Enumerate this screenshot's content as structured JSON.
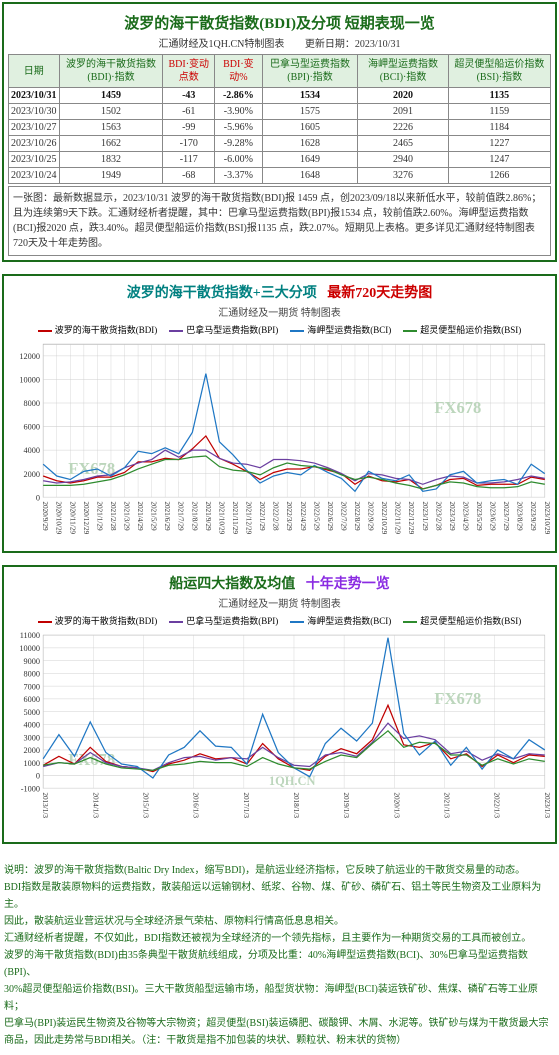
{
  "header": {
    "title": "波罗的海干散货指数(BDI)及分项 短期表现一览",
    "source_left": "汇通财经及1QH.CN特制图表",
    "source_right": "更新日期：2023/10/31"
  },
  "table": {
    "columns": [
      "日期",
      "波罗的海干散货指数(BDI)·指数",
      "BDI·变动点数",
      "BDI·变动%",
      "巴拿马型运费指数(BPI)·指数",
      "海岬型运费指数(BCI)·指数",
      "超灵便型船运价指数(BSI)·指数"
    ],
    "rows": [
      {
        "date": "2023/10/31",
        "bdi": "1459",
        "chg": "-43",
        "pct": "-2.86%",
        "bpi": "1534",
        "bci": "2020",
        "bsi": "1135",
        "hl": true
      },
      {
        "date": "2023/10/30",
        "bdi": "1502",
        "chg": "-61",
        "pct": "-3.90%",
        "bpi": "1575",
        "bci": "2091",
        "bsi": "1159"
      },
      {
        "date": "2023/10/27",
        "bdi": "1563",
        "chg": "-99",
        "pct": "-5.96%",
        "bpi": "1605",
        "bci": "2226",
        "bsi": "1184"
      },
      {
        "date": "2023/10/26",
        "bdi": "1662",
        "chg": "-170",
        "pct": "-9.28%",
        "bpi": "1628",
        "bci": "2465",
        "bsi": "1227"
      },
      {
        "date": "2023/10/25",
        "bdi": "1832",
        "chg": "-117",
        "pct": "-6.00%",
        "bpi": "1649",
        "bci": "2940",
        "bsi": "1247"
      },
      {
        "date": "2023/10/24",
        "bdi": "1949",
        "chg": "-68",
        "pct": "-3.37%",
        "bpi": "1648",
        "bci": "3276",
        "bsi": "1266"
      }
    ],
    "caption": "一张图：最新数据显示，2023/10/31 波罗的海干散货指数(BDI)报 1459 点，创2023/09/18以来新低水平，较前值跌2.86%；且为连续第9天下跌。汇通财经析者提醒，其中：巴拿马型运费指数(BPI)报1534 点，较前值跌2.60%。海岬型运费指数(BCI)报2020 点，跌3.40%。超灵便型船运价指数(BSI)报1135 点，跌2.07%。短期见上表格。更多详见汇通财经特制图表720天及十年走势图。"
  },
  "chart1": {
    "title_left": "波罗的海干散货指数+三大分项",
    "title_right": "最新720天走势图",
    "subtitle": "汇通财经及一期货 特制图表",
    "series": [
      {
        "name": "波罗的海干散货指数(BDI)",
        "color": "#c00000"
      },
      {
        "name": "巴拿马型运费指数(BPI)",
        "color": "#6b3fa0"
      },
      {
        "name": "海岬型运费指数(BCI)",
        "color": "#1f77c4"
      },
      {
        "name": "超灵便型船运价指数(BSI)",
        "color": "#2e8b2e"
      }
    ],
    "ylim": [
      0,
      13000
    ],
    "yticks": [
      0,
      2000,
      4000,
      6000,
      8000,
      10000,
      12000
    ],
    "xlabels": [
      "2020/9/29",
      "2020/10/29",
      "2020/11/29",
      "2020/12/29",
      "2021/1/29",
      "2021/2/28",
      "2021/3/29",
      "2021/4/29",
      "2021/5/29",
      "2021/6/29",
      "2021/7/29",
      "2021/8/29",
      "2021/9/29",
      "2021/10/29",
      "2021/11/29",
      "2021/12/29",
      "2022/1/29",
      "2022/2/28",
      "2022/3/29",
      "2022/4/29",
      "2022/5/29",
      "2022/6/29",
      "2022/7/29",
      "2022/8/29",
      "2022/9/29",
      "2022/10/29",
      "2022/11/29",
      "2022/12/29",
      "2023/1/29",
      "2023/2/28",
      "2023/3/29",
      "2023/4/29",
      "2023/5/29",
      "2023/6/29",
      "2023/7/29",
      "2023/8/29",
      "2023/9/29",
      "2023/10/29"
    ],
    "watermark": "FX678",
    "paths": {
      "bdi": [
        1800,
        1400,
        1200,
        1400,
        1700,
        1700,
        2100,
        3000,
        3000,
        3300,
        3200,
        4100,
        5200,
        3300,
        2800,
        2200,
        1500,
        2100,
        2400,
        2400,
        2600,
        2300,
        2000,
        1100,
        1800,
        1400,
        1300,
        1500,
        700,
        1000,
        1500,
        1600,
        1000,
        1100,
        1100,
        1100,
        1700,
        1500
      ],
      "bpi": [
        1400,
        1200,
        1300,
        1500,
        1800,
        1900,
        2500,
        2900,
        3200,
        4000,
        3400,
        4000,
        4000,
        3300,
        2900,
        2800,
        2500,
        3200,
        3200,
        3100,
        2900,
        2500,
        2000,
        1400,
        2000,
        1900,
        1600,
        1500,
        1100,
        1500,
        1800,
        1700,
        1200,
        1200,
        1300,
        1500,
        1800,
        1600
      ],
      "bci": [
        2800,
        1800,
        1500,
        2200,
        2400,
        1800,
        2500,
        3900,
        3700,
        4200,
        3700,
        5500,
        10500,
        4700,
        3600,
        2300,
        1200,
        1800,
        2100,
        1900,
        2700,
        2100,
        1600,
        500,
        2200,
        1600,
        1400,
        1900,
        500,
        700,
        1900,
        2200,
        1200,
        1400,
        1500,
        1100,
        2800,
        2000
      ],
      "bsi": [
        1000,
        1000,
        1000,
        1100,
        1300,
        1500,
        1900,
        2400,
        2800,
        3200,
        3200,
        3400,
        3500,
        2600,
        2300,
        2200,
        1900,
        2500,
        2900,
        2700,
        2600,
        2400,
        1900,
        1500,
        1700,
        1500,
        1200,
        1000,
        700,
        1000,
        1300,
        1200,
        900,
        800,
        800,
        900,
        1300,
        1100
      ]
    },
    "grid_color": "#d0d0d0",
    "bg": "#ffffff",
    "label_fontsize": 8
  },
  "chart2": {
    "title_left": "船运四大指数及均值",
    "title_right": "十年走势一览",
    "subtitle": "汇通财经及一期货 特制图表",
    "series": [
      {
        "name": "波罗的海干散货指数(BDI)",
        "color": "#c00000"
      },
      {
        "name": "巴拿马型运费指数(BPI)",
        "color": "#6b3fa0"
      },
      {
        "name": "海岬型运费指数(BCI)",
        "color": "#1f77c4"
      },
      {
        "name": "超灵便型船运价指数(BSI)",
        "color": "#2e8b2e"
      }
    ],
    "ylim": [
      -1000,
      11000
    ],
    "yticks": [
      -1000,
      0,
      1000,
      2000,
      3000,
      4000,
      5000,
      6000,
      7000,
      8000,
      9000,
      10000,
      11000
    ],
    "xlabels": [
      "2013/1/3",
      "2014/1/3",
      "2015/1/3",
      "2016/1/3",
      "2017/1/3",
      "2018/1/3",
      "2019/1/3",
      "2020/1/3",
      "2021/1/3",
      "2022/1/3",
      "2023/1/3"
    ],
    "watermark": "FX678",
    "watermark2": "1QH.CN",
    "paths": {
      "bdi": [
        800,
        1500,
        900,
        2200,
        1100,
        700,
        600,
        300,
        900,
        1200,
        1700,
        1300,
        1400,
        900,
        2500,
        1300,
        600,
        400,
        1500,
        2100,
        1700,
        2800,
        5500,
        2400,
        2200,
        2600,
        1300,
        1700,
        700,
        1600,
        1000,
        1600,
        1500
      ],
      "bpi": [
        700,
        1000,
        900,
        1800,
        1000,
        700,
        600,
        400,
        1000,
        1400,
        1500,
        1200,
        1400,
        1300,
        2200,
        1400,
        800,
        700,
        1600,
        1800,
        1500,
        2600,
        4100,
        2900,
        3100,
        2800,
        1700,
        1900,
        1200,
        1700,
        1300,
        1700,
        1600
      ],
      "bci": [
        1300,
        3200,
        1500,
        4200,
        1800,
        900,
        700,
        -200,
        1600,
        2200,
        3500,
        2300,
        2200,
        900,
        4800,
        1800,
        600,
        -100,
        2500,
        3700,
        2700,
        4100,
        10800,
        3300,
        1600,
        2700,
        800,
        2200,
        500,
        2000,
        1300,
        2800,
        2000
      ],
      "bsi": [
        800,
        1000,
        900,
        1400,
        900,
        600,
        500,
        400,
        800,
        900,
        1100,
        1000,
        1000,
        700,
        1400,
        900,
        600,
        500,
        1100,
        1600,
        1400,
        2500,
        3500,
        2200,
        2600,
        2500,
        1600,
        1600,
        800,
        1300,
        900,
        1300,
        1100
      ]
    },
    "grid_color": "#d0d0d0",
    "bg": "#ffffff",
    "label_fontsize": 8
  },
  "footnotes": [
    "说明：波罗的海干散货指数(Baltic Dry Index，缩写BDI)，是航运业经济指标，它反映了航运业的干散货交易量的动态。",
    "BDI指数是散装原物料的运费指数，散装船运以运输钢材、纸浆、谷物、煤、矿砂、磷矿石、铝土等民生物资及工业原料为主。",
    "因此，散装航运业营运状况与全球经济景气荣枯、原物料行情高低息息相关。",
    "汇通财经析者提醒，不仅如此，BDI指数还被视为全球经济的一个领先指标，且主要作为一种期货交易的工具而被创立。",
    "波罗的海干散货指数(BDI)由35条典型干散货航线组成，分项及比重：40%海岬型运费指数(BCI)、30%巴拿马型运费指数(BPI)、",
    "30%超灵便型船运价指数(BSI)。三大干散货船型运输市场，船型货状物：海岬型(BCI)装运铁矿砂、焦煤、磷矿石等工业原料；",
    "巴拿马(BPI)装运民生物资及谷物等大宗物资；超灵便型(BSI)装运磷肥、碳酸钾、木屑、水泥等。铁矿砂与煤为干散货最大宗",
    "商品，因此走势常与BDI相关。（注：干散货是指不加包装的块状、颗粒状、粉末状的货物）"
  ]
}
